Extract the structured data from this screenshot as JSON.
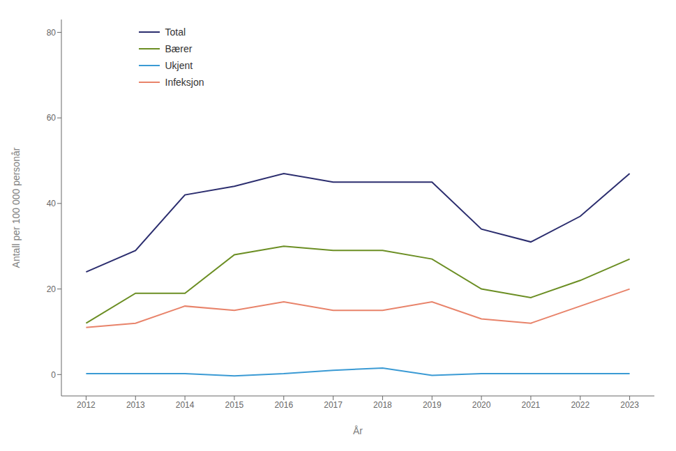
{
  "chart_data": {
    "type": "line",
    "xlabel": "År",
    "ylabel": "Antall per 100 000 personår",
    "x": [
      2012,
      2013,
      2014,
      2015,
      2016,
      2017,
      2018,
      2019,
      2020,
      2021,
      2022,
      2023
    ],
    "series": [
      {
        "name": "Total",
        "color": "#2b2d6e",
        "values": [
          24,
          29,
          42,
          44,
          47,
          45,
          45,
          45,
          34,
          31,
          37,
          47
        ]
      },
      {
        "name": "Bærer",
        "color": "#6b8e23",
        "values": [
          12,
          19,
          19,
          28,
          30,
          29,
          29,
          27,
          20,
          18,
          22,
          27
        ]
      },
      {
        "name": "Ukjent",
        "color": "#3a9ad4",
        "values": [
          0.2,
          0.2,
          0.2,
          -0.3,
          0.2,
          1.0,
          1.5,
          -0.2,
          0.2,
          0.2,
          0.2,
          0.2
        ]
      },
      {
        "name": "Infeksjon",
        "color": "#e8836a",
        "values": [
          11,
          12,
          16,
          15,
          17,
          15,
          15,
          17,
          13,
          12,
          16,
          20
        ]
      }
    ],
    "xlim": [
      2011.5,
      2023.5
    ],
    "xticks": [
      2012,
      2013,
      2014,
      2015,
      2016,
      2017,
      2018,
      2019,
      2020,
      2021,
      2022,
      2023
    ],
    "ylim": [
      -5,
      83
    ],
    "yticks": [
      0,
      20,
      40,
      60,
      80
    ],
    "grid": false,
    "legend": "upper left"
  }
}
